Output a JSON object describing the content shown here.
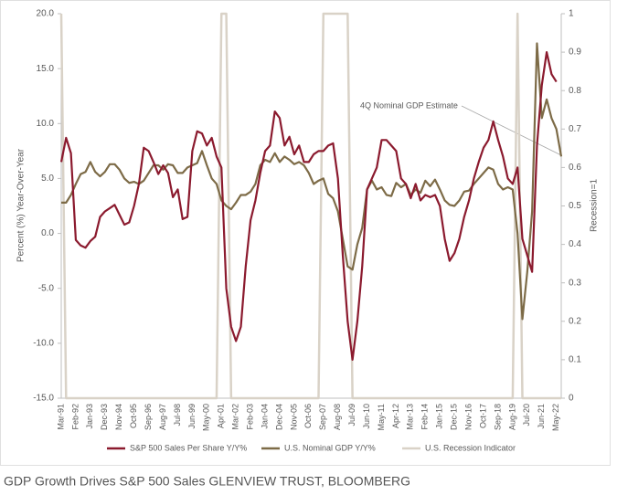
{
  "chart_data": {
    "type": "line",
    "caption": "GDP Growth Drives S&P 500 Sales  GLENVIEW TRUST, BLOOMBERG",
    "ylabel": "Percent (%) Year-Over-Year",
    "y2label": "Recession=1",
    "annotation": "4Q Nominal GDP Estimate",
    "categories": [
      "Mar-91",
      null,
      null,
      "Feb-92",
      null,
      null,
      "Jan-93",
      null,
      null,
      "Dec-93",
      null,
      null,
      "Nov-94",
      null,
      null,
      "Oct-95",
      null,
      null,
      "Sep-96",
      null,
      null,
      "Aug-97",
      null,
      null,
      "Jul-98",
      null,
      null,
      "Jun-99",
      null,
      null,
      "May-00",
      null,
      null,
      "Apr-01",
      null,
      null,
      "Mar-02",
      null,
      null,
      "Feb-03",
      null,
      null,
      "Jan-04",
      null,
      null,
      "Dec-04",
      null,
      null,
      "Nov-05",
      null,
      null,
      "Oct-06",
      null,
      null,
      "Sep-07",
      null,
      null,
      "Aug-08",
      null,
      null,
      "Jul-09",
      null,
      null,
      "Jun-10",
      null,
      null,
      "May-11",
      null,
      null,
      "Apr-12",
      null,
      null,
      "Mar-13",
      null,
      null,
      "Feb-14",
      null,
      null,
      "Jan-15",
      null,
      null,
      "Dec-15",
      null,
      null,
      "Nov-16",
      null,
      null,
      "Oct-17",
      null,
      null,
      "Sep-18",
      null,
      null,
      "Aug-19",
      null,
      null,
      "Jul-20",
      null,
      null,
      "Jun-21",
      null,
      null,
      "May-22",
      null
    ],
    "series": [
      {
        "name": "S&P 500 Sales Per Share Y/Y%",
        "color": "#8b1a2e",
        "values": [
          6.5,
          8.7,
          7.3,
          -0.6,
          -1.1,
          -1.3,
          -0.7,
          -0.3,
          1.5,
          2.0,
          2.3,
          2.6,
          1.7,
          0.8,
          1.0,
          2.5,
          4.5,
          7.8,
          7.5,
          6.5,
          5.4,
          6.2,
          5.5,
          3.3,
          4.0,
          1.3,
          1.5,
          7.5,
          9.3,
          9.1,
          8.0,
          8.7,
          7.0,
          6.0,
          -5.0,
          -8.5,
          -9.8,
          -8.5,
          -3.0,
          1.2,
          3.0,
          5.5,
          7.5,
          8.0,
          11.1,
          10.5,
          8.0,
          8.8,
          7.2,
          8.0,
          6.5,
          6.5,
          7.2,
          7.5,
          7.5,
          8.0,
          8.2,
          5.0,
          -2.0,
          -8.0,
          -11.5,
          -8.0,
          -3.0,
          4.0,
          5.0,
          6.0,
          8.5,
          8.5,
          8.0,
          7.5,
          5.0,
          4.5,
          3.2,
          4.5,
          3.0,
          3.5,
          3.3,
          3.5,
          2.5,
          -0.5,
          -2.5,
          -1.8,
          -0.5,
          1.5,
          3.0,
          5.0,
          6.5,
          7.8,
          8.5,
          10.2,
          8.5,
          7.0,
          5.0,
          4.5,
          6.0,
          -0.5,
          -2.0,
          -3.5,
          8.0,
          13.5,
          16.5,
          14.5,
          13.8,
          null
        ]
      },
      {
        "name": "U.S. Nominal GDP Y/Y%",
        "color": "#7d6b47",
        "values": [
          2.8,
          2.8,
          3.5,
          4.5,
          5.4,
          5.6,
          6.5,
          5.6,
          5.2,
          5.6,
          6.3,
          6.3,
          5.8,
          5.0,
          4.6,
          4.7,
          4.5,
          4.8,
          5.5,
          6.2,
          6.2,
          5.8,
          6.3,
          6.2,
          5.5,
          5.5,
          6.0,
          6.2,
          6.4,
          7.5,
          6.2,
          5.0,
          4.5,
          3.0,
          2.5,
          2.2,
          2.8,
          3.5,
          3.5,
          3.8,
          4.5,
          6.2,
          6.7,
          6.5,
          7.3,
          6.5,
          7.0,
          6.7,
          6.3,
          6.5,
          6.2,
          5.5,
          4.5,
          4.8,
          5.0,
          3.6,
          3.2,
          2.0,
          -0.5,
          -3.0,
          -3.3,
          -1.0,
          0.5,
          4.0,
          4.8,
          4.0,
          4.2,
          3.5,
          3.4,
          4.6,
          4.2,
          4.5,
          3.5,
          4.0,
          3.7,
          4.8,
          4.3,
          4.9,
          4.0,
          3.0,
          2.6,
          2.5,
          3.0,
          3.8,
          3.9,
          4.5,
          5.0,
          5.5,
          6.0,
          5.8,
          4.5,
          4.0,
          4.2,
          4.0,
          0.0,
          -7.8,
          -3.5,
          2.0,
          17.3,
          10.5,
          12.2,
          10.5,
          9.5,
          7.0
        ]
      },
      {
        "name": "U.S. Recession Indicator",
        "color": "#d9d2c7",
        "axis": "y2",
        "values": [
          1,
          0,
          0,
          0,
          0,
          0,
          0,
          0,
          0,
          0,
          0,
          0,
          0,
          0,
          0,
          0,
          0,
          0,
          0,
          0,
          0,
          0,
          0,
          0,
          0,
          0,
          0,
          0,
          0,
          0,
          0,
          0,
          0,
          1,
          1,
          0,
          0,
          0,
          0,
          0,
          0,
          0,
          0,
          0,
          0,
          0,
          0,
          0,
          0,
          0,
          0,
          0,
          0,
          0,
          1,
          1,
          1,
          1,
          1,
          1,
          0,
          0,
          0,
          0,
          0,
          0,
          0,
          0,
          0,
          0,
          0,
          0,
          0,
          0,
          0,
          0,
          0,
          0,
          0,
          0,
          0,
          0,
          0,
          0,
          0,
          0,
          0,
          0,
          0,
          0,
          0,
          0,
          0,
          0,
          1,
          0,
          0,
          0,
          0,
          0,
          0,
          0,
          0,
          0
        ]
      }
    ],
    "ylim": [
      -15,
      20
    ],
    "yticks": [
      {
        "value": -15,
        "label": "-15.0"
      },
      {
        "value": -10,
        "label": "-10.0"
      },
      {
        "value": -5,
        "label": "-5.0"
      },
      {
        "value": 0,
        "label": "0.0"
      },
      {
        "value": 5,
        "label": "5.0"
      },
      {
        "value": 10,
        "label": "10.0"
      },
      {
        "value": 15,
        "label": "15.0"
      },
      {
        "value": 20,
        "label": "20.0"
      }
    ],
    "y2lim": [
      0,
      1
    ],
    "y2ticks": [
      0,
      0.1,
      0.2,
      0.3,
      0.4,
      0.5,
      0.6,
      0.7,
      0.8,
      0.9,
      1
    ],
    "grid": false,
    "legend": "bottom"
  }
}
